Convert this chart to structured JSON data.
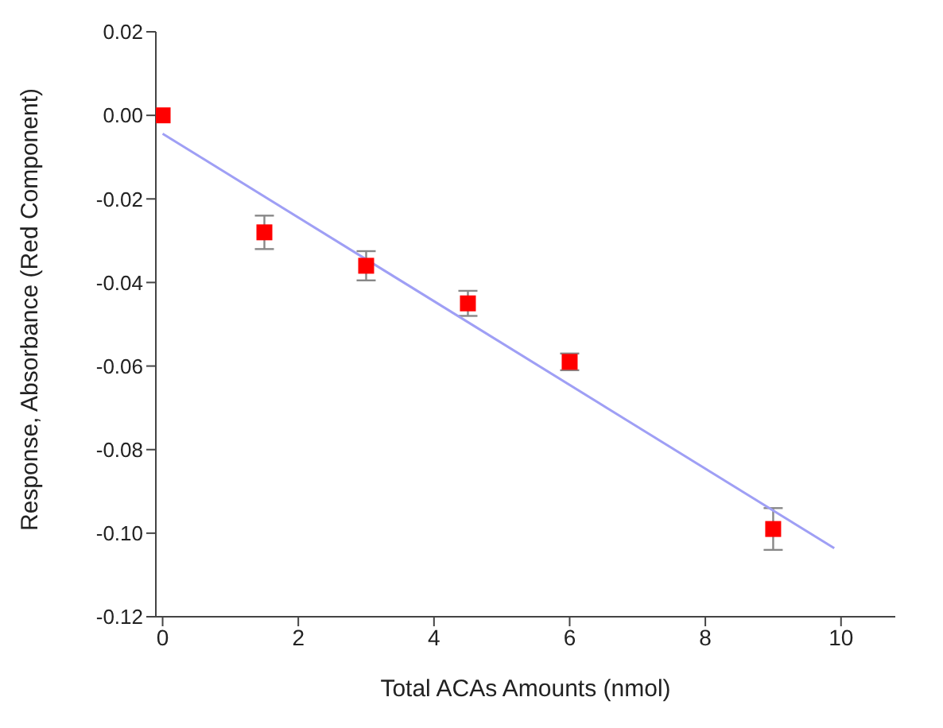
{
  "chart_data": {
    "type": "scatter",
    "xlabel": "Total ACAs Amounts (nmol)",
    "ylabel": "Response, Absorbance (Red Component)",
    "xlim": [
      -0.1,
      10.8
    ],
    "xticks": [
      0,
      2,
      4,
      6,
      8,
      10
    ],
    "ylim": [
      -0.12,
      0.02
    ],
    "yticks": [
      {
        "value": 0.02,
        "label": "0.02"
      },
      {
        "value": 0,
        "label": "0.00"
      },
      {
        "value": -0.02,
        "label": "-0.02"
      },
      {
        "value": -0.04,
        "label": "-0.04"
      },
      {
        "value": -0.06,
        "label": "-0.06"
      },
      {
        "value": -0.08,
        "label": "-0.08"
      },
      {
        "value": -0.1,
        "label": "-0.10"
      },
      {
        "value": -0.12,
        "label": "-0.12"
      }
    ],
    "marker": "square",
    "series": [
      {
        "color": "#ff0000",
        "x": [
          0,
          1.5,
          3,
          4.5,
          6,
          9
        ],
        "values": [
          0,
          -0.028,
          -0.036,
          -0.045,
          -0.059,
          -0.099
        ],
        "errors": [
          null,
          0.004,
          0.0035,
          0.003,
          0.002,
          0.005
        ]
      },
      {
        "type": "line",
        "marker": "none",
        "color": "#9f9ff5",
        "x": [
          0,
          9.9
        ],
        "values": [
          -0.0044,
          -0.1036
        ]
      }
    ]
  }
}
